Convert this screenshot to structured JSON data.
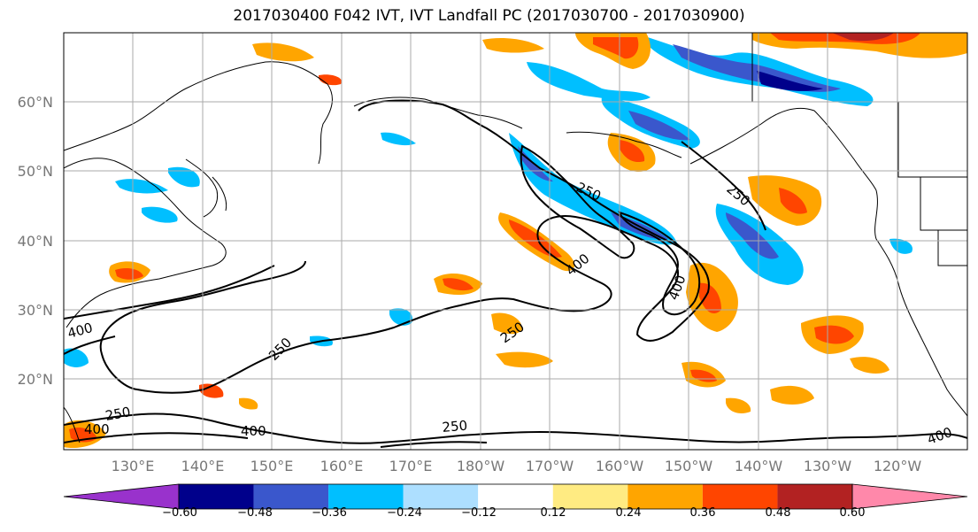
{
  "title": "2017030400 F042 IVT, IVT Landfall PC (2017030700 - 2017030900)",
  "lat_labels": [
    "60°N",
    "50°N",
    "40°N",
    "30°N",
    "20°N"
  ],
  "lon_labels": [
    "130°E",
    "140°E",
    "150°E",
    "160°E",
    "170°E",
    "180°W",
    "170°W",
    "160°W",
    "150°W",
    "140°W",
    "130°W",
    "120°W"
  ],
  "colorbar": {
    "colors": [
      "#9932CC",
      "#00008B",
      "#3A57CC",
      "#00BFFF",
      "#ADDFFF",
      "#FFFFFF",
      "#FFEB82",
      "#FFA500",
      "#FF4500",
      "#B22222",
      "#FF88AA"
    ],
    "tick_labels": [
      "−0.60",
      "−0.48",
      "−0.36",
      "−0.24",
      "−0.12",
      "0.12",
      "0.24",
      "0.36",
      "0.48",
      "0.60"
    ]
  },
  "contour_labels": [
    "250",
    "250",
    "400",
    "400",
    "400",
    "250",
    "250",
    "400",
    "250",
    "400",
    "250",
    "400"
  ],
  "map_colors": {
    "land_line": "#000000",
    "grid": "#aaaaaa",
    "contour": "#000000"
  }
}
